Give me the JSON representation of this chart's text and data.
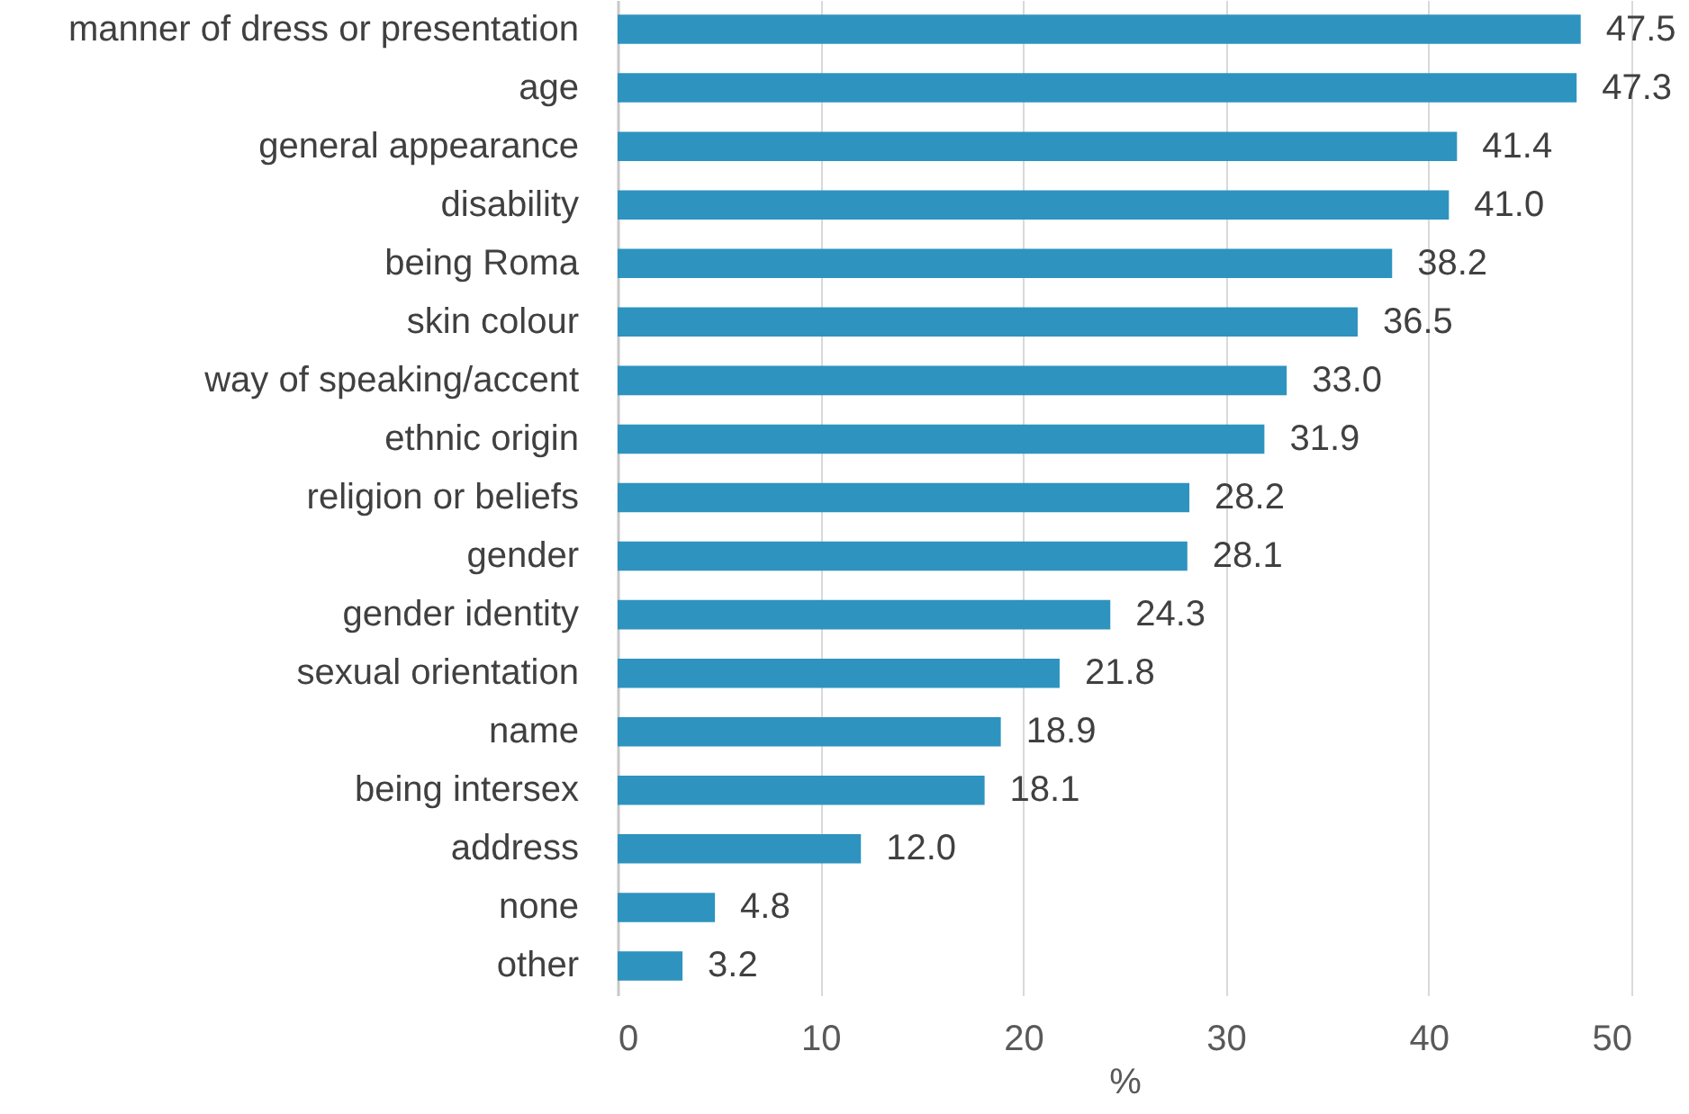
{
  "chart_data": {
    "type": "bar",
    "orientation": "horizontal",
    "xlabel": "%",
    "categories": [
      "manner of dress or presentation",
      "age",
      "general appearance",
      "disability",
      "being Roma",
      "skin colour",
      "way of speaking/accent",
      "ethnic origin",
      "religion or beliefs",
      "gender",
      "gender identity",
      "sexual orientation",
      "name",
      "being intersex",
      "address",
      "none",
      "other"
    ],
    "values": [
      47.5,
      47.3,
      41.4,
      41.0,
      38.2,
      36.5,
      33.0,
      31.9,
      28.2,
      28.1,
      24.3,
      21.8,
      18.9,
      18.1,
      12.0,
      4.8,
      3.2
    ],
    "value_labels": [
      "47.5",
      "47.3",
      "41.4",
      "41.0",
      "38.2",
      "36.5",
      "33.0",
      "31.9",
      "28.2",
      "28.1",
      "24.3",
      "21.8",
      "18.9",
      "18.1",
      "12.0",
      "4.8",
      "3.2"
    ],
    "color": "#2e93bf",
    "xlim": [
      0,
      50
    ],
    "xticks": [
      0,
      10,
      20,
      30,
      40,
      50
    ],
    "grid": "x"
  }
}
